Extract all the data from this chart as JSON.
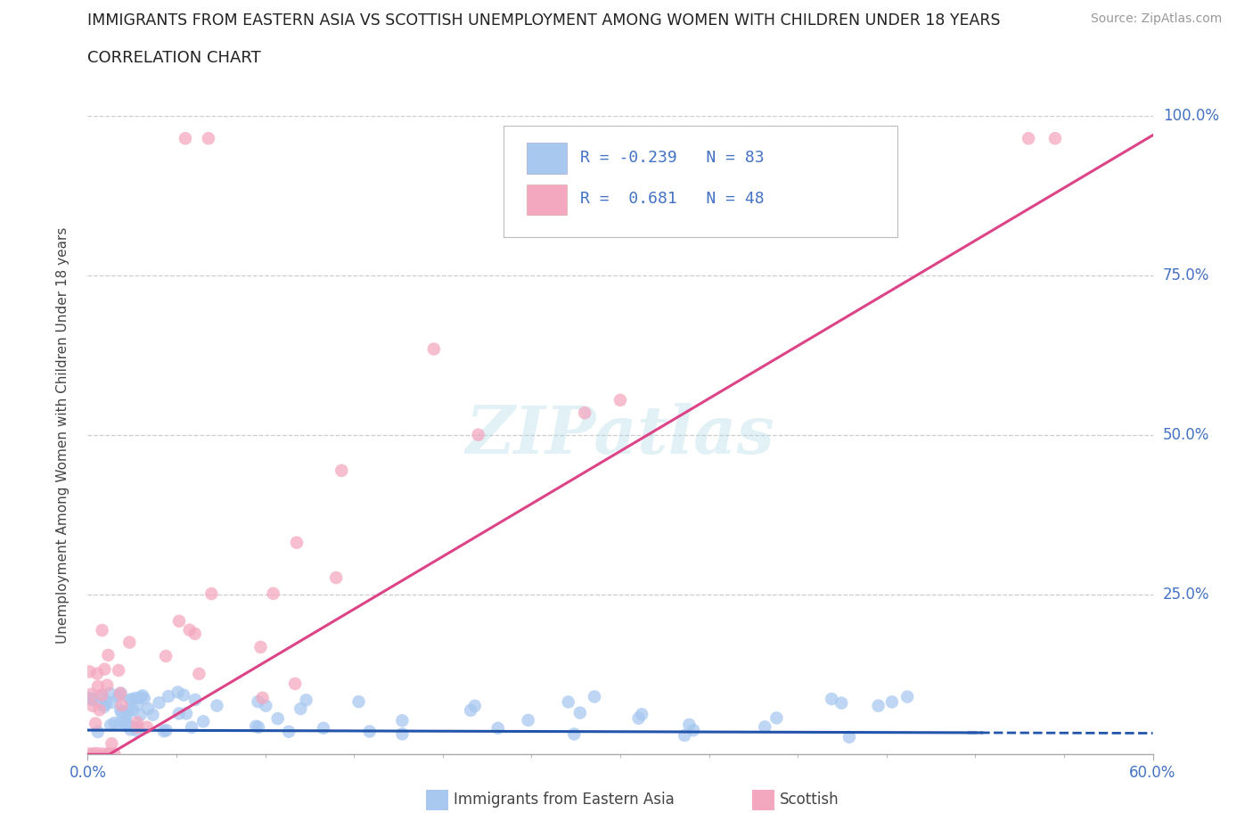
{
  "title": "IMMIGRANTS FROM EASTERN ASIA VS SCOTTISH UNEMPLOYMENT AMONG WOMEN WITH CHILDREN UNDER 18 YEARS",
  "subtitle": "CORRELATION CHART",
  "source": "Source: ZipAtlas.com",
  "ylabel": "Unemployment Among Women with Children Under 18 years",
  "xlim": [
    0.0,
    0.6
  ],
  "ylim": [
    0.0,
    1.0
  ],
  "legend_blue_label": "Immigrants from Eastern Asia",
  "legend_pink_label": "Scottish",
  "r_blue": -0.239,
  "n_blue": 83,
  "r_pink": 0.681,
  "n_pink": 48,
  "blue_color": "#A8C8F0",
  "pink_color": "#F4A8C0",
  "blue_line_color": "#2255AA",
  "pink_line_color": "#DD4488",
  "grid_color": "#CCCCCC",
  "title_fontsize": 12.5,
  "subtitle_fontsize": 13,
  "tick_label_color": "#4472C4"
}
